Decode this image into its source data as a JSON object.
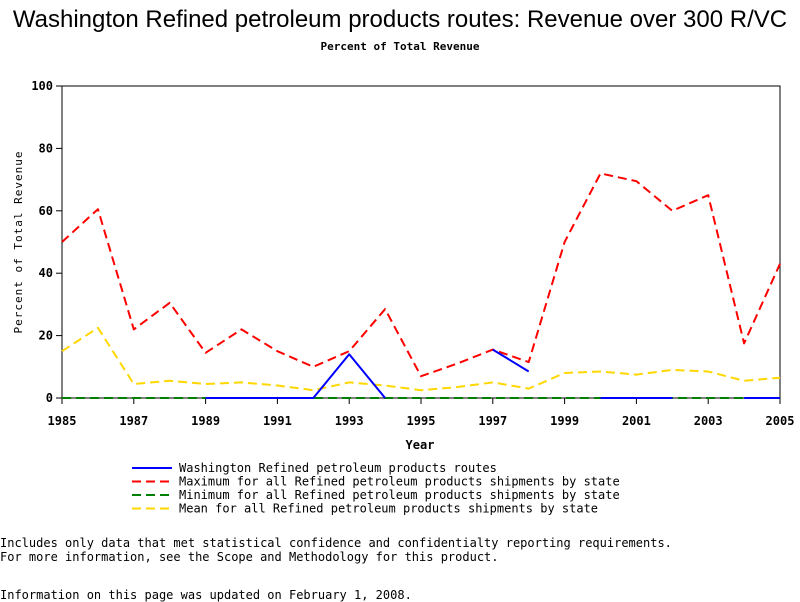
{
  "page": {
    "title": "Washington Refined petroleum products routes: Revenue over 300 R/VC",
    "subtitle": "Percent of Total Revenue",
    "notes": [
      "Includes only data that met statistical confidence and confidentialty reporting requirements.",
      "For more information, see the Scope and Methodology for this product."
    ],
    "updated": "Information on this page was updated on February 1, 2008."
  },
  "chart_data": {
    "type": "line",
    "title": "Washington Refined petroleum products routes: Revenue over 300 R/VC",
    "subtitle": "Percent of Total Revenue",
    "xlabel": "Year",
    "ylabel": "Percent of Total Revenue",
    "xlim": [
      1985,
      2005
    ],
    "ylim": [
      0,
      100
    ],
    "x_ticks": [
      "1985",
      "1987",
      "1989",
      "1991",
      "1993",
      "1995",
      "1997",
      "1999",
      "2001",
      "2003",
      "2005"
    ],
    "y_ticks": [
      "0",
      "20",
      "40",
      "60",
      "80",
      "100"
    ],
    "grid": false,
    "legend_position": "bottom",
    "series": [
      {
        "name": "Washington Refined petroleum products routes",
        "color": "#0000ff",
        "dash": "solid",
        "segments": [
          [
            [
              1989,
              0
            ],
            [
              1990,
              0
            ],
            [
              1991,
              0
            ],
            [
              1992,
              0
            ],
            [
              1993,
              14
            ],
            [
              1994,
              0
            ]
          ],
          [
            [
              1997,
              15.5
            ],
            [
              1998,
              8.5
            ]
          ],
          [
            [
              2000,
              0
            ],
            [
              2001,
              0
            ],
            [
              2002,
              0
            ]
          ],
          [
            [
              2004,
              0
            ],
            [
              2005,
              0
            ]
          ]
        ]
      },
      {
        "name": "Maximum for all Refined petroleum products shipments by state",
        "color": "#ff0000",
        "dash": "dashed",
        "segments": [
          [
            [
              1985,
              50
            ],
            [
              1986,
              60.5
            ],
            [
              1987,
              22
            ],
            [
              1988,
              30.5
            ],
            [
              1989,
              14.5
            ],
            [
              1990,
              22
            ],
            [
              1991,
              15
            ],
            [
              1992,
              10
            ],
            [
              1993,
              15
            ],
            [
              1994,
              28.5
            ],
            [
              1995,
              7
            ],
            [
              1996,
              11
            ],
            [
              1997,
              15.5
            ],
            [
              1998,
              11.5
            ],
            [
              1999,
              50
            ],
            [
              2000,
              72
            ],
            [
              2001,
              69.5
            ],
            [
              2002,
              60
            ],
            [
              2003,
              65
            ],
            [
              2004,
              17.5
            ],
            [
              2005,
              43
            ]
          ]
        ]
      },
      {
        "name": "Minimum for all Refined petroleum products shipments by state",
        "color": "#008000",
        "dash": "dashed",
        "segments": [
          [
            [
              1985,
              0
            ],
            [
              1986,
              0
            ],
            [
              1987,
              0
            ],
            [
              1988,
              0
            ],
            [
              1989,
              0
            ],
            [
              1990,
              0
            ],
            [
              1991,
              0
            ],
            [
              1992,
              0
            ],
            [
              1993,
              0
            ],
            [
              1994,
              0
            ],
            [
              1995,
              0
            ],
            [
              1996,
              0
            ],
            [
              1997,
              0
            ],
            [
              1998,
              0
            ],
            [
              1999,
              0
            ],
            [
              2000,
              0
            ],
            [
              2001,
              0
            ],
            [
              2002,
              0
            ],
            [
              2003,
              0
            ],
            [
              2004,
              0
            ],
            [
              2005,
              0
            ]
          ]
        ]
      },
      {
        "name": "Mean for all Refined petroleum products shipments by state",
        "color": "#ffd700",
        "dash": "dashed",
        "segments": [
          [
            [
              1985,
              15
            ],
            [
              1986,
              22.5
            ],
            [
              1987,
              4.5
            ],
            [
              1988,
              5.5
            ],
            [
              1989,
              4.5
            ],
            [
              1990,
              5
            ],
            [
              1991,
              4
            ],
            [
              1992,
              2.5
            ],
            [
              1993,
              5
            ],
            [
              1994,
              4
            ],
            [
              1995,
              2.5
            ],
            [
              1996,
              3.5
            ],
            [
              1997,
              5
            ],
            [
              1998,
              3
            ],
            [
              1999,
              8
            ],
            [
              2000,
              8.5
            ],
            [
              2001,
              7.5
            ],
            [
              2002,
              9
            ],
            [
              2003,
              8.5
            ],
            [
              2004,
              5.5
            ],
            [
              2005,
              6.5
            ]
          ]
        ]
      }
    ]
  }
}
